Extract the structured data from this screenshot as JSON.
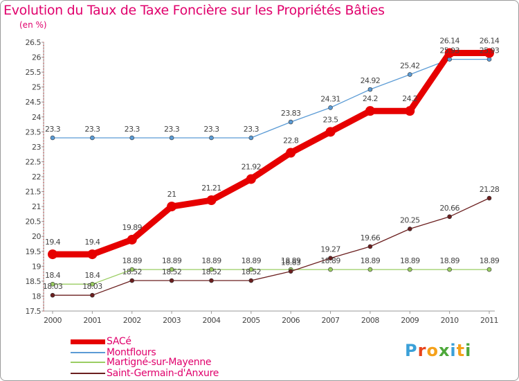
{
  "title": "Evolution du Taux de Taxe Foncière sur les Propriétés Bâties",
  "unit_label": "(en %)",
  "logo_text": "Proxiti",
  "chart_data": {
    "type": "line",
    "title": "Evolution du Taux de Taxe Foncière sur les Propriétés Bâties",
    "ylabel": "(en %)",
    "xlabel": "",
    "x": [
      "2000",
      "2001",
      "2002",
      "2003",
      "2004",
      "2005",
      "2006",
      "2007",
      "2008",
      "2009",
      "2010",
      "2011"
    ],
    "ylim": [
      17.5,
      26.5
    ],
    "yticks": [
      "17.5",
      "18",
      "18.5",
      "19",
      "19.5",
      "20",
      "20.5",
      "21",
      "21.5",
      "22",
      "22.5",
      "23",
      "23.5",
      "24",
      "24.5",
      "25",
      "25.5",
      "26",
      "26.5"
    ],
    "grid": false,
    "legend_position": "bottom-left",
    "series": [
      {
        "name": "SACé",
        "color": "#e60000",
        "values": [
          19.4,
          19.4,
          19.89,
          21,
          21.21,
          21.92,
          22.8,
          23.5,
          24.2,
          24.2,
          26.14,
          26.14
        ],
        "labels": [
          "19.4",
          "19.4",
          "19.89",
          "21",
          "21.21",
          "21.92",
          "22.8",
          "23.5",
          "24.2",
          "24.2",
          "26.14",
          "26.14"
        ]
      },
      {
        "name": "Montflours",
        "color": "#5b9bd5",
        "values": [
          23.3,
          23.3,
          23.3,
          23.3,
          23.3,
          23.3,
          23.83,
          24.31,
          24.92,
          25.42,
          25.93,
          25.93
        ],
        "labels": [
          "23.3",
          "23.3",
          "23.3",
          "23.3",
          "23.3",
          "23.3",
          "23.83",
          "24.31",
          "24.92",
          "25.42",
          "25.93",
          "25.93"
        ]
      },
      {
        "name": "Martigné-sur-Mayenne",
        "color": "#9acd62",
        "values": [
          18.4,
          18.4,
          18.89,
          18.89,
          18.89,
          18.89,
          18.89,
          18.89,
          18.89,
          18.89,
          18.89,
          18.89
        ],
        "labels": [
          "18.4",
          "18.4",
          "18.89",
          "18.89",
          "18.89",
          "18.89",
          "18.89",
          "18.89",
          "18.89",
          "18.89",
          "18.89",
          "18.89"
        ]
      },
      {
        "name": "Saint-Germain-d'Anxure",
        "color": "#6b1f1f",
        "values": [
          18.03,
          18.03,
          18.52,
          18.52,
          18.52,
          18.52,
          18.83,
          19.27,
          19.66,
          20.25,
          20.66,
          21.28
        ],
        "labels": [
          "18.03",
          "18.03",
          "18.52",
          "18.52",
          "18.52",
          "18.52",
          "18.83",
          "19.27",
          "19.66",
          "20.25",
          "20.66",
          "21.28"
        ]
      }
    ]
  }
}
